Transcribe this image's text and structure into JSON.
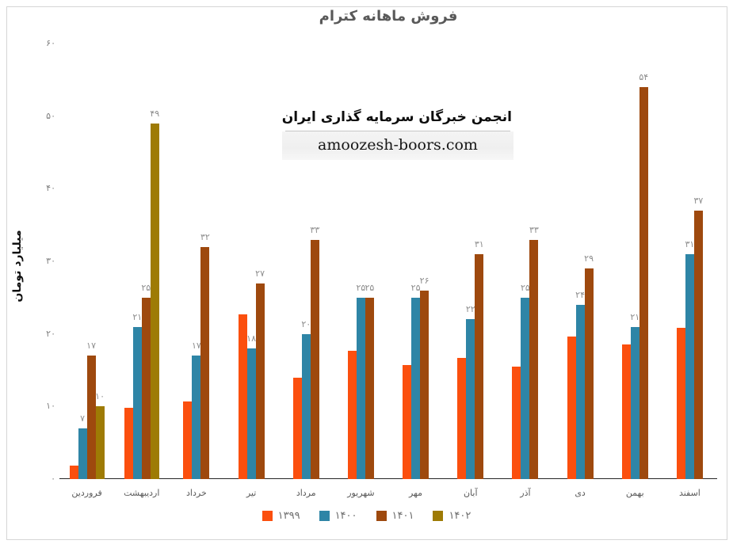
{
  "title": "فروش ماهانه کترام",
  "y_axis_title": "میلیارد تومان",
  "watermark": {
    "line1": "انجمن خبرگان سرمایه گذاری ایران",
    "line2": "amoozesh-boors.com"
  },
  "colors": {
    "series_1399": "#FB4F0E",
    "series_1400": "#2E85A6",
    "series_1401": "#9E490E",
    "series_1402": "#9E7B05",
    "axis_line": "#262626",
    "tick_label": "#7f7f7f",
    "data_label": "#8c8c8c",
    "title_text": "#595959",
    "frame_border": "#d6d6d6"
  },
  "chart_data": {
    "type": "bar",
    "title": "فروش ماهانه کترام",
    "ylabel": "میلیارد تومان",
    "xlabel": "",
    "ylim": [
      0,
      60
    ],
    "y_tick_values": [
      0,
      10,
      20,
      30,
      40,
      50,
      60
    ],
    "grid": false,
    "legend_position": "bottom",
    "categories": [
      "فروردین",
      "اردیبهشت",
      "خرداد",
      "تیر",
      "مرداد",
      "شهریور",
      "مهر",
      "آبان",
      "آذر",
      "دی",
      "بهمن",
      "اسفند"
    ],
    "series": [
      {
        "name": "۱۳۹۹",
        "color": "#FB4F0E",
        "show_labels": false,
        "values": [
          1.9,
          9.8,
          10.7,
          22.7,
          14,
          17.7,
          15.7,
          16.7,
          15.5,
          19.6,
          18.5,
          20.8
        ]
      },
      {
        "name": "۱۴۰۰",
        "color": "#2E85A6",
        "show_labels": true,
        "values": [
          7,
          21,
          17,
          18,
          20,
          25,
          25,
          22,
          25,
          24,
          21,
          31
        ]
      },
      {
        "name": "۱۴۰۱",
        "color": "#9E490E",
        "show_labels": true,
        "values": [
          17,
          25,
          32,
          27,
          33,
          25,
          26,
          31,
          33,
          29,
          54,
          37
        ]
      },
      {
        "name": "۱۴۰۲",
        "color": "#9E7B05",
        "show_labels": true,
        "values": [
          10,
          49,
          null,
          null,
          null,
          null,
          null,
          null,
          null,
          null,
          null,
          null
        ]
      }
    ]
  }
}
